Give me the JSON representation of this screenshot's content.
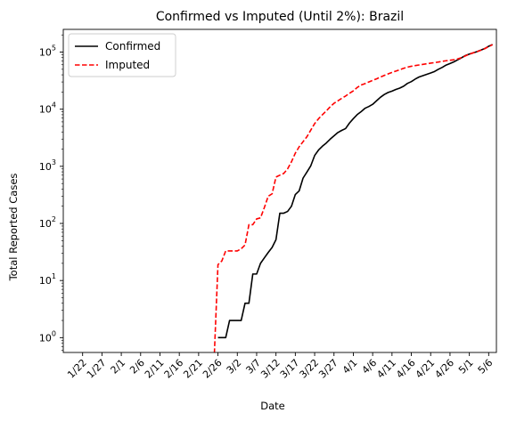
{
  "chart_data": {
    "type": "line",
    "title": "Confirmed vs Imputed (Until 2%): Brazil",
    "xlabel": "Date",
    "ylabel": "Total Reported Cases",
    "y_scale": "log",
    "ylim": [
      0.55,
      250000
    ],
    "y_ticks": [
      {
        "value": 1,
        "base": "10",
        "exp": "0"
      },
      {
        "value": 10,
        "base": "10",
        "exp": "1"
      },
      {
        "value": 100,
        "base": "10",
        "exp": "2"
      },
      {
        "value": 1000,
        "base": "10",
        "exp": "3"
      },
      {
        "value": 10000,
        "base": "10",
        "exp": "4"
      },
      {
        "value": 100000,
        "base": "10",
        "exp": "5"
      }
    ],
    "x_ticks": [
      {
        "date": "2020-01-22",
        "label": "1/22"
      },
      {
        "date": "2020-01-27",
        "label": "1/27"
      },
      {
        "date": "2020-02-01",
        "label": "2/1"
      },
      {
        "date": "2020-02-06",
        "label": "2/6"
      },
      {
        "date": "2020-02-11",
        "label": "2/11"
      },
      {
        "date": "2020-02-16",
        "label": "2/16"
      },
      {
        "date": "2020-02-21",
        "label": "2/21"
      },
      {
        "date": "2020-02-26",
        "label": "2/26"
      },
      {
        "date": "2020-03-02",
        "label": "3/2"
      },
      {
        "date": "2020-03-07",
        "label": "3/7"
      },
      {
        "date": "2020-03-12",
        "label": "3/12"
      },
      {
        "date": "2020-03-17",
        "label": "3/17"
      },
      {
        "date": "2020-03-22",
        "label": "3/22"
      },
      {
        "date": "2020-03-27",
        "label": "3/27"
      },
      {
        "date": "2020-04-01",
        "label": "4/1"
      },
      {
        "date": "2020-04-06",
        "label": "4/6"
      },
      {
        "date": "2020-04-11",
        "label": "4/11"
      },
      {
        "date": "2020-04-16",
        "label": "4/16"
      },
      {
        "date": "2020-04-21",
        "label": "4/21"
      },
      {
        "date": "2020-04-26",
        "label": "4/26"
      },
      {
        "date": "2020-05-01",
        "label": "5/1"
      },
      {
        "date": "2020-05-06",
        "label": "5/6"
      }
    ],
    "xlim": [
      "2020-01-17",
      "2020-05-08"
    ],
    "grid": false,
    "legend_position": "top-left",
    "series": [
      {
        "name": "Confirmed",
        "color": "#000000",
        "style": "solid",
        "points": [
          [
            "2020-02-26",
            1
          ],
          [
            "2020-02-27",
            1
          ],
          [
            "2020-02-28",
            1
          ],
          [
            "2020-02-29",
            2
          ],
          [
            "2020-03-01",
            2
          ],
          [
            "2020-03-02",
            2
          ],
          [
            "2020-03-03",
            2
          ],
          [
            "2020-03-04",
            4
          ],
          [
            "2020-03-05",
            4
          ],
          [
            "2020-03-06",
            13
          ],
          [
            "2020-03-07",
            13
          ],
          [
            "2020-03-08",
            20
          ],
          [
            "2020-03-09",
            25
          ],
          [
            "2020-03-10",
            31
          ],
          [
            "2020-03-11",
            38
          ],
          [
            "2020-03-12",
            52
          ],
          [
            "2020-03-13",
            151
          ],
          [
            "2020-03-14",
            151
          ],
          [
            "2020-03-15",
            162
          ],
          [
            "2020-03-16",
            200
          ],
          [
            "2020-03-17",
            321
          ],
          [
            "2020-03-18",
            372
          ],
          [
            "2020-03-19",
            621
          ],
          [
            "2020-03-20",
            793
          ],
          [
            "2020-03-21",
            1021
          ],
          [
            "2020-03-22",
            1546
          ],
          [
            "2020-03-23",
            1924
          ],
          [
            "2020-03-24",
            2247
          ],
          [
            "2020-03-25",
            2554
          ],
          [
            "2020-03-26",
            2985
          ],
          [
            "2020-03-27",
            3417
          ],
          [
            "2020-03-28",
            3904
          ],
          [
            "2020-03-29",
            4256
          ],
          [
            "2020-03-30",
            4579
          ],
          [
            "2020-03-31",
            5717
          ],
          [
            "2020-04-01",
            6836
          ],
          [
            "2020-04-02",
            8044
          ],
          [
            "2020-04-03",
            9056
          ],
          [
            "2020-04-04",
            10360
          ],
          [
            "2020-04-05",
            11130
          ],
          [
            "2020-04-06",
            12161
          ],
          [
            "2020-04-07",
            14034
          ],
          [
            "2020-04-08",
            16170
          ],
          [
            "2020-04-09",
            18092
          ],
          [
            "2020-04-10",
            19638
          ],
          [
            "2020-04-11",
            20727
          ],
          [
            "2020-04-12",
            22192
          ],
          [
            "2020-04-13",
            23430
          ],
          [
            "2020-04-14",
            25262
          ],
          [
            "2020-04-15",
            28320
          ],
          [
            "2020-04-16",
            30425
          ],
          [
            "2020-04-17",
            33682
          ],
          [
            "2020-04-18",
            36658
          ],
          [
            "2020-04-19",
            38654
          ],
          [
            "2020-04-20",
            40743
          ],
          [
            "2020-04-21",
            43079
          ],
          [
            "2020-04-22",
            45757
          ],
          [
            "2020-04-23",
            50036
          ],
          [
            "2020-04-24",
            54043
          ],
          [
            "2020-04-25",
            59324
          ],
          [
            "2020-04-26",
            63100
          ],
          [
            "2020-04-27",
            67446
          ],
          [
            "2020-04-28",
            73235
          ],
          [
            "2020-04-29",
            79685
          ],
          [
            "2020-04-30",
            87187
          ],
          [
            "2020-05-01",
            92202
          ],
          [
            "2020-05-02",
            97100
          ],
          [
            "2020-05-03",
            101826
          ],
          [
            "2020-05-04",
            108620
          ],
          [
            "2020-05-05",
            115455
          ],
          [
            "2020-05-06",
            126611
          ],
          [
            "2020-05-07",
            135773
          ]
        ]
      },
      {
        "name": "Imputed",
        "color": "#ff0000",
        "style": "dashed",
        "points": [
          [
            "2020-02-25",
            0.4
          ],
          [
            "2020-02-26",
            19
          ],
          [
            "2020-02-27",
            22
          ],
          [
            "2020-02-28",
            33
          ],
          [
            "2020-02-29",
            33
          ],
          [
            "2020-03-01",
            33
          ],
          [
            "2020-03-02",
            33
          ],
          [
            "2020-03-03",
            36
          ],
          [
            "2020-03-04",
            42
          ],
          [
            "2020-03-05",
            95
          ],
          [
            "2020-03-06",
            95
          ],
          [
            "2020-03-07",
            120
          ],
          [
            "2020-03-08",
            125
          ],
          [
            "2020-03-09",
            190
          ],
          [
            "2020-03-10",
            300
          ],
          [
            "2020-03-11",
            330
          ],
          [
            "2020-03-12",
            650
          ],
          [
            "2020-03-13",
            700
          ],
          [
            "2020-03-14",
            750
          ],
          [
            "2020-03-15",
            900
          ],
          [
            "2020-03-16",
            1200
          ],
          [
            "2020-03-17",
            1700
          ],
          [
            "2020-03-18",
            2200
          ],
          [
            "2020-03-19",
            2700
          ],
          [
            "2020-03-20",
            3300
          ],
          [
            "2020-03-21",
            4300
          ],
          [
            "2020-03-22",
            5600
          ],
          [
            "2020-03-23",
            6800
          ],
          [
            "2020-03-24",
            8000
          ],
          [
            "2020-03-25",
            9300
          ],
          [
            "2020-03-26",
            11000
          ],
          [
            "2020-03-27",
            12700
          ],
          [
            "2020-03-28",
            14000
          ],
          [
            "2020-03-29",
            15500
          ],
          [
            "2020-03-30",
            17000
          ],
          [
            "2020-03-31",
            19000
          ],
          [
            "2020-04-01",
            21000
          ],
          [
            "2020-04-02",
            24000
          ],
          [
            "2020-04-03",
            26500
          ],
          [
            "2020-04-04",
            28000
          ],
          [
            "2020-04-05",
            30000
          ],
          [
            "2020-04-06",
            32000
          ],
          [
            "2020-04-07",
            34000
          ],
          [
            "2020-04-08",
            36500
          ],
          [
            "2020-04-09",
            39000
          ],
          [
            "2020-04-10",
            41500
          ],
          [
            "2020-04-11",
            44000
          ],
          [
            "2020-04-12",
            46500
          ],
          [
            "2020-04-13",
            49000
          ],
          [
            "2020-04-14",
            52000
          ],
          [
            "2020-04-15",
            54500
          ],
          [
            "2020-04-16",
            56500
          ],
          [
            "2020-04-17",
            58000
          ],
          [
            "2020-04-18",
            59500
          ],
          [
            "2020-04-19",
            61000
          ],
          [
            "2020-04-20",
            62500
          ],
          [
            "2020-04-21",
            64000
          ],
          [
            "2020-04-22",
            65500
          ],
          [
            "2020-04-23",
            67000
          ],
          [
            "2020-04-24",
            69000
          ],
          [
            "2020-04-25",
            70500
          ],
          [
            "2020-04-26",
            72000
          ],
          [
            "2020-04-27",
            73500
          ],
          [
            "2020-04-28",
            76000
          ],
          [
            "2020-04-29",
            80000
          ],
          [
            "2020-04-30",
            86000
          ],
          [
            "2020-05-01",
            92000
          ],
          [
            "2020-05-02",
            97000
          ],
          [
            "2020-05-03",
            102000
          ],
          [
            "2020-05-04",
            108000
          ],
          [
            "2020-05-05",
            115000
          ],
          [
            "2020-05-06",
            125000
          ],
          [
            "2020-05-07",
            135000
          ]
        ]
      }
    ]
  }
}
